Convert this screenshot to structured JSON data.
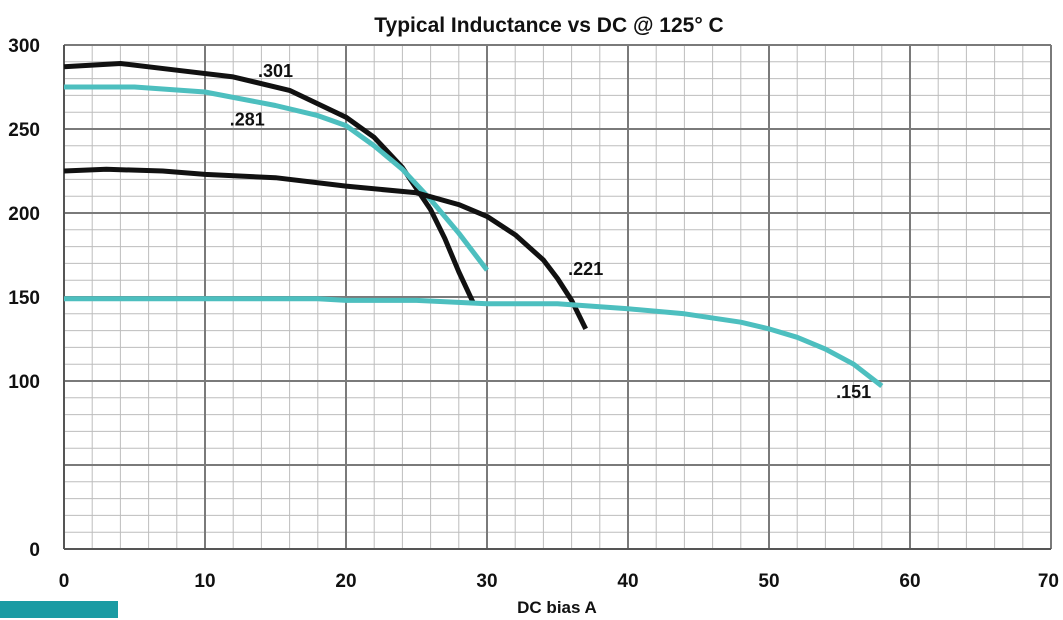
{
  "chart_data": {
    "type": "line",
    "title": "Typical Inductance vs DC @ 125° C",
    "xlabel": "DC bias A",
    "ylabel": "",
    "xlim": [
      0,
      70
    ],
    "ylim": [
      0,
      300
    ],
    "x_ticks": [
      0,
      10,
      20,
      30,
      40,
      50,
      60,
      70
    ],
    "y_ticks": [
      0,
      100,
      150,
      200,
      250,
      300
    ],
    "x_tick_labels": [
      "0",
      "10",
      "20",
      "30",
      "40",
      "50",
      "60",
      "70"
    ],
    "y_tick_labels": [
      "0",
      "100",
      "150",
      "200",
      "250",
      "300"
    ],
    "grid": true,
    "legend": "none",
    "series": [
      {
        "name": ".301",
        "color": "#111111",
        "x": [
          0,
          4,
          8,
          12,
          16,
          20,
          22,
          24,
          26,
          27,
          28,
          29
        ],
        "y": [
          287,
          289,
          285,
          281,
          273,
          257,
          245,
          227,
          202,
          185,
          165,
          147
        ]
      },
      {
        "name": ".281",
        "color": "#4dbfbf",
        "x": [
          0,
          5,
          10,
          15,
          18,
          20,
          22,
          24,
          26,
          28,
          30
        ],
        "y": [
          275,
          275,
          272,
          264,
          258,
          252,
          240,
          226,
          208,
          188,
          166
        ]
      },
      {
        "name": ".221",
        "color": "#111111",
        "x": [
          0,
          3,
          7,
          10,
          15,
          20,
          25,
          28,
          30,
          32,
          34,
          35,
          36,
          37
        ],
        "y": [
          225,
          226,
          225,
          223,
          221,
          216,
          212,
          205,
          198,
          187,
          172,
          161,
          148,
          131
        ]
      },
      {
        "name": ".151",
        "color": "#4dbfbf",
        "x": [
          0,
          10,
          18,
          20,
          25,
          30,
          35,
          40,
          44,
          48,
          50,
          52,
          54,
          56,
          58
        ],
        "y": [
          149,
          149,
          149,
          148,
          148,
          146,
          146,
          143,
          140,
          135,
          131,
          126,
          119,
          110,
          97
        ]
      }
    ]
  }
}
